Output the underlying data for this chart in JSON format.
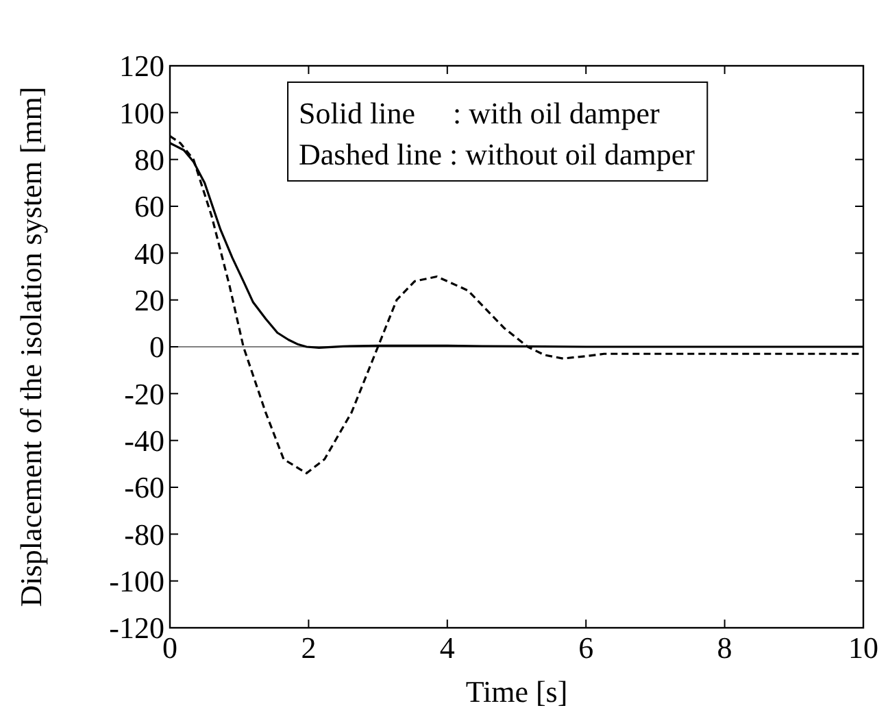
{
  "chart_data": {
    "type": "line",
    "xlabel": "Time [s]",
    "ylabel": "Displacement of the isolation system [mm]",
    "xlim": [
      0,
      10
    ],
    "xticks": [
      0,
      2,
      4,
      6,
      8,
      10
    ],
    "ylim": [
      -120,
      120
    ],
    "yticks": [
      -120,
      -100,
      -80,
      -60,
      -40,
      -20,
      0,
      20,
      40,
      60,
      80,
      100,
      120
    ],
    "grid": false,
    "annotations": [
      "Solid line     : with oil damper",
      "Dashed line : without oil damper"
    ],
    "ref_lines": [
      {
        "axis": "y",
        "value": 0,
        "color": "#808080"
      }
    ],
    "series": [
      {
        "color": "#000000",
        "line_style": "solid",
        "x": [
          0,
          0.2,
          0.34,
          0.5,
          0.73,
          0.9,
          1.06,
          1.2,
          1.38,
          1.55,
          1.71,
          1.85,
          1.97,
          2.15,
          2.5,
          3,
          4,
          4.5,
          6,
          8,
          10
        ],
        "values": [
          87,
          84,
          79,
          70,
          50,
          38,
          28,
          19,
          12,
          6,
          3,
          1,
          0,
          -0.4,
          0.2,
          0.5,
          0.5,
          0.3,
          0,
          0,
          0
        ]
      },
      {
        "color": "#000000",
        "line_style": "dashed",
        "x": [
          0,
          0.15,
          0.34,
          0.6,
          0.86,
          1.06,
          1.38,
          1.64,
          1.97,
          2.23,
          2.62,
          3.0,
          3.27,
          3.53,
          3.85,
          4.3,
          4.82,
          5.16,
          5.4,
          5.67,
          6.0,
          6.26,
          7,
          8,
          10
        ],
        "values": [
          90,
          87,
          80,
          56,
          26,
          0,
          -28,
          -48,
          -54,
          -48,
          -28,
          0,
          20,
          28,
          30,
          24,
          8,
          0,
          -3.5,
          -5,
          -4,
          -3,
          -3,
          -3,
          -3
        ]
      }
    ]
  }
}
